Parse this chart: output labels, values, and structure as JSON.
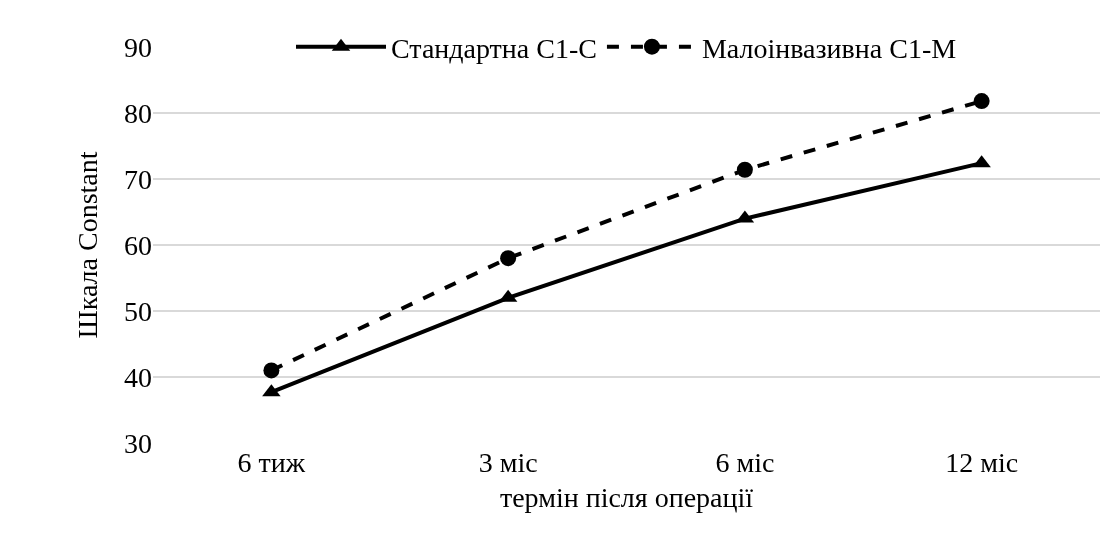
{
  "chart_data": {
    "type": "line",
    "xlabel": "термін після операції",
    "ylabel": "Шкала Constant",
    "categories": [
      "6 тиж",
      "3 міс",
      "6 міс",
      "12 міс"
    ],
    "series": [
      {
        "name": "Стандартна С1-С",
        "color": "#000000",
        "values": [
          37.7,
          52,
          64,
          72.4
        ],
        "marker": "triangle",
        "line_style": "solid"
      },
      {
        "name": "Малоінвазивна С1-М",
        "color": "#000000",
        "values": [
          41,
          58,
          71.4,
          81.8
        ],
        "marker": "circle",
        "line_style": "dashed"
      }
    ],
    "ylim": [
      30,
      90
    ],
    "yticks": [
      30,
      40,
      50,
      60,
      70,
      80,
      90
    ],
    "grid": "y",
    "legend": "top"
  }
}
